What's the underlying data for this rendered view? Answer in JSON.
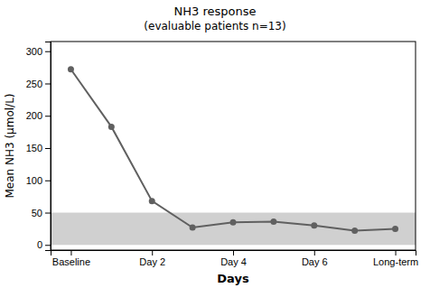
{
  "chart_data": {
    "type": "line",
    "title": "NH3 response",
    "subtitle": "(evaluable patients n=13)",
    "x_label": "Days",
    "y_label": "Mean NH3 (µmol/L)",
    "x": [
      0,
      0.5,
      1,
      1.5,
      2,
      2.5,
      3,
      3.5,
      4
    ],
    "values": [
      272,
      183,
      68,
      27,
      35,
      36,
      30,
      22,
      25
    ],
    "color": "#606060",
    "marker": "circle",
    "xlim": [
      -0.25,
      4.25
    ],
    "xticks": [
      {
        "value": 0,
        "label": "Baseline"
      },
      {
        "value": 1,
        "label": "Day 2"
      },
      {
        "value": 2,
        "label": "Day 4"
      },
      {
        "value": 3,
        "label": "Day 6"
      },
      {
        "value": 4,
        "label": "Long-term"
      }
    ],
    "ylim": [
      -8,
      315
    ],
    "yticks": [
      0,
      50,
      100,
      150,
      200,
      250,
      300
    ],
    "shaded_band": {
      "values": [
        0,
        50
      ],
      "color": "#d0d0d0"
    },
    "grid": false
  }
}
